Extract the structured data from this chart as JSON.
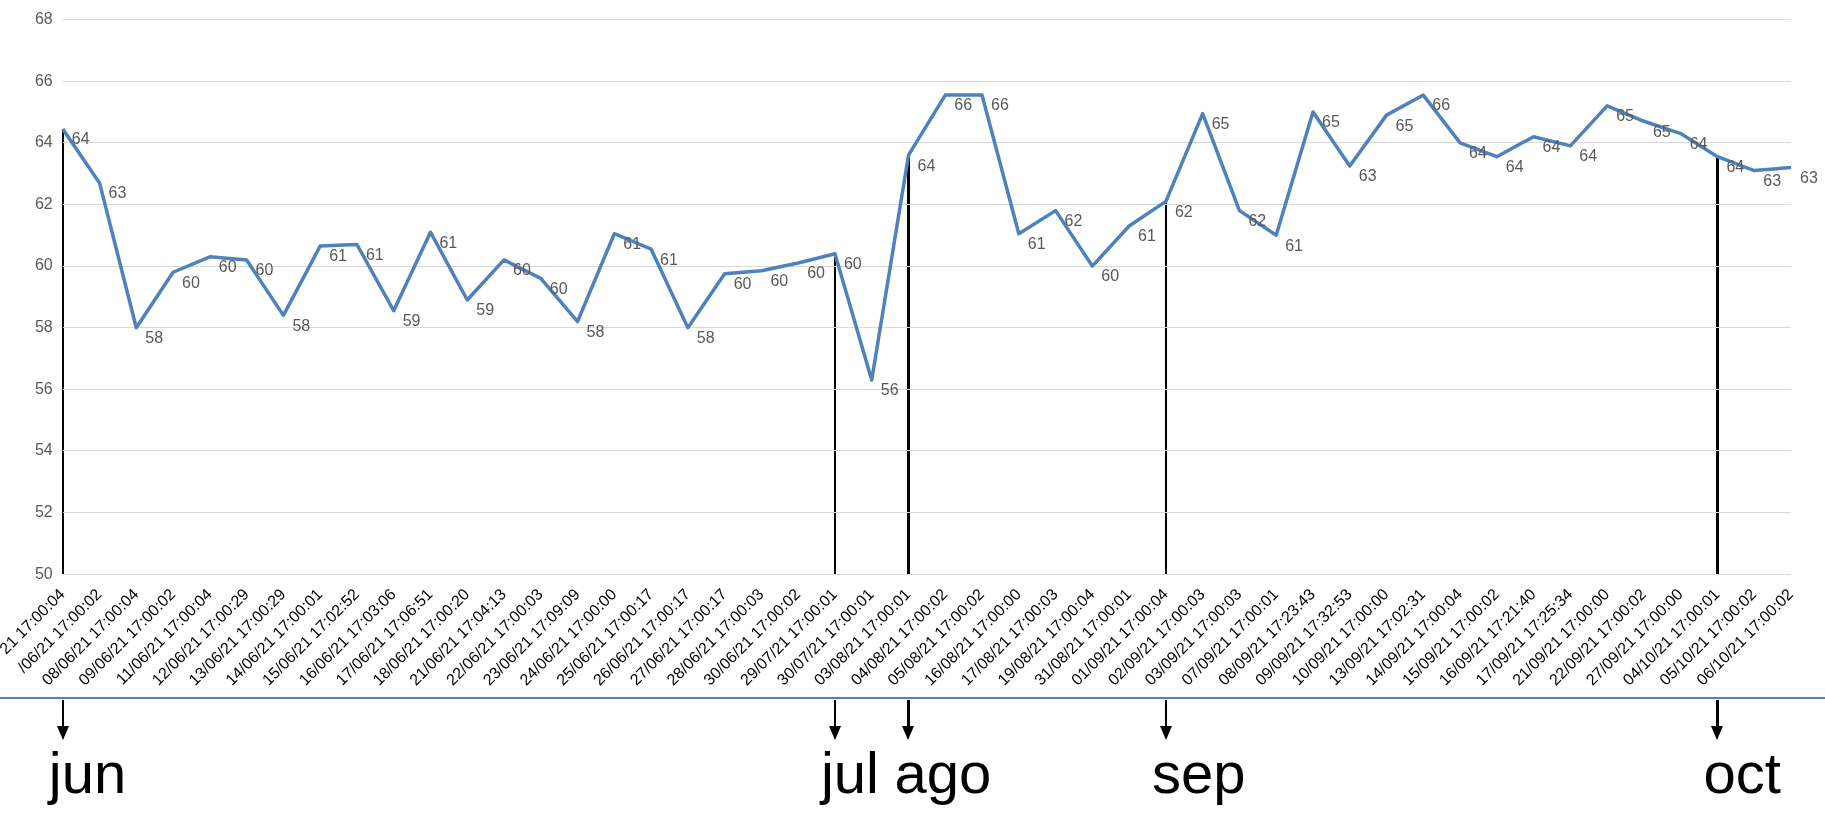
{
  "chart_data": {
    "type": "line",
    "categories": [
      "21 17:00:04",
      "/06/21 17:00:02",
      "08/06/21 17:00:04",
      "09/06/21 17:00:02",
      "11/06/21 17:00:04",
      "12/06/21 17:00:29",
      "13/06/21 17:00:29",
      "14/06/21 17:00:01",
      "15/06/21 17:02:52",
      "16/06/21 17:03:06",
      "17/06/21 17:06:51",
      "18/06/21 17:00:20",
      "21/06/21 17:04:13",
      "22/06/21 17:00:03",
      "23/06/21 17:09:09",
      "24/06/21 17:00:00",
      "25/06/21 17:00:17",
      "26/06/21 17:00:17",
      "27/06/21 17:00:17",
      "28/06/21 17:00:03",
      "30/06/21 17:00:02",
      "29/07/21 17:00:01",
      "30/07/21 17:00:01",
      "03/08/21 17:00:01",
      "04/08/21 17:00:02",
      "05/08/21 17:00:02",
      "16/08/21 17:00:00",
      "17/08/21 17:00:03",
      "19/08/21 17:00:04",
      "31/08/21 17:00:01",
      "01/09/21 17:00:04",
      "02/09/21 17:00:03",
      "03/09/21 17:00:03",
      "07/09/21 17:00:01",
      "08/09/21 17:23:43",
      "09/09/21 17:32:53",
      "10/09/21 17:00:00",
      "13/09/21 17:02:31",
      "14/09/21 17:00:04",
      "15/09/21 17:00:02",
      "16/09/21 17:21:40",
      "17/09/21 17:25:34",
      "21/09/21 17:00:00",
      "22/09/21 17:00:02",
      "27/09/21 17:00:00",
      "04/10/21 17:00:01",
      "05/10/21 17:00:02",
      "06/10/21 17:00:02"
    ],
    "series": [
      {
        "color": "#4f81bd",
        "values": [
          64.45,
          62.7,
          58.0,
          59.8,
          60.3,
          60.2,
          58.4,
          60.65,
          60.7,
          58.55,
          61.1,
          58.9,
          60.2,
          59.6,
          58.2,
          61.05,
          60.55,
          58.0,
          59.75,
          59.85,
          60.1,
          60.4,
          56.3,
          63.6,
          65.55,
          65.55,
          61.05,
          61.8,
          60.0,
          61.3,
          62.1,
          64.95,
          61.8,
          61.0,
          65.0,
          63.25,
          64.9,
          65.55,
          64.0,
          63.55,
          64.2,
          63.9,
          65.2,
          64.7,
          64.3,
          63.55,
          63.1,
          63.2
        ],
        "value_labels": [
          "64",
          "63",
          "58",
          "60",
          "60",
          "60",
          "58",
          "61",
          "61",
          "59",
          "61",
          "59",
          "60",
          "60",
          "58",
          "61",
          "61",
          "58",
          "60",
          "60",
          "60",
          "60",
          "56",
          "64",
          "66",
          "66",
          "61",
          "62",
          "60",
          "61",
          "62",
          "65",
          "62",
          "61",
          "65",
          "63",
          "65",
          "66",
          "64",
          "64",
          "64",
          "64",
          "65",
          "65",
          "64",
          "64",
          "63",
          "63"
        ]
      }
    ],
    "ylim": [
      50,
      68
    ],
    "yticks": [
      50,
      52,
      54,
      56,
      58,
      60,
      62,
      64,
      66,
      68
    ],
    "grid": "y",
    "legend": false,
    "marker": "none",
    "line_style": "solid",
    "ref_lines": [
      {
        "axis": "x",
        "value": "21 17:00:04",
        "label": "jun"
      },
      {
        "axis": "x",
        "value": "29/07/21 17:00:01",
        "label": "jul"
      },
      {
        "axis": "x",
        "value": "03/08/21 17:00:01",
        "label": "ago"
      },
      {
        "axis": "x",
        "value": "01/09/21 17:00:04",
        "label": "sep"
      },
      {
        "axis": "x",
        "value": "04/10/21 17:00:01",
        "label": "oct"
      }
    ]
  }
}
